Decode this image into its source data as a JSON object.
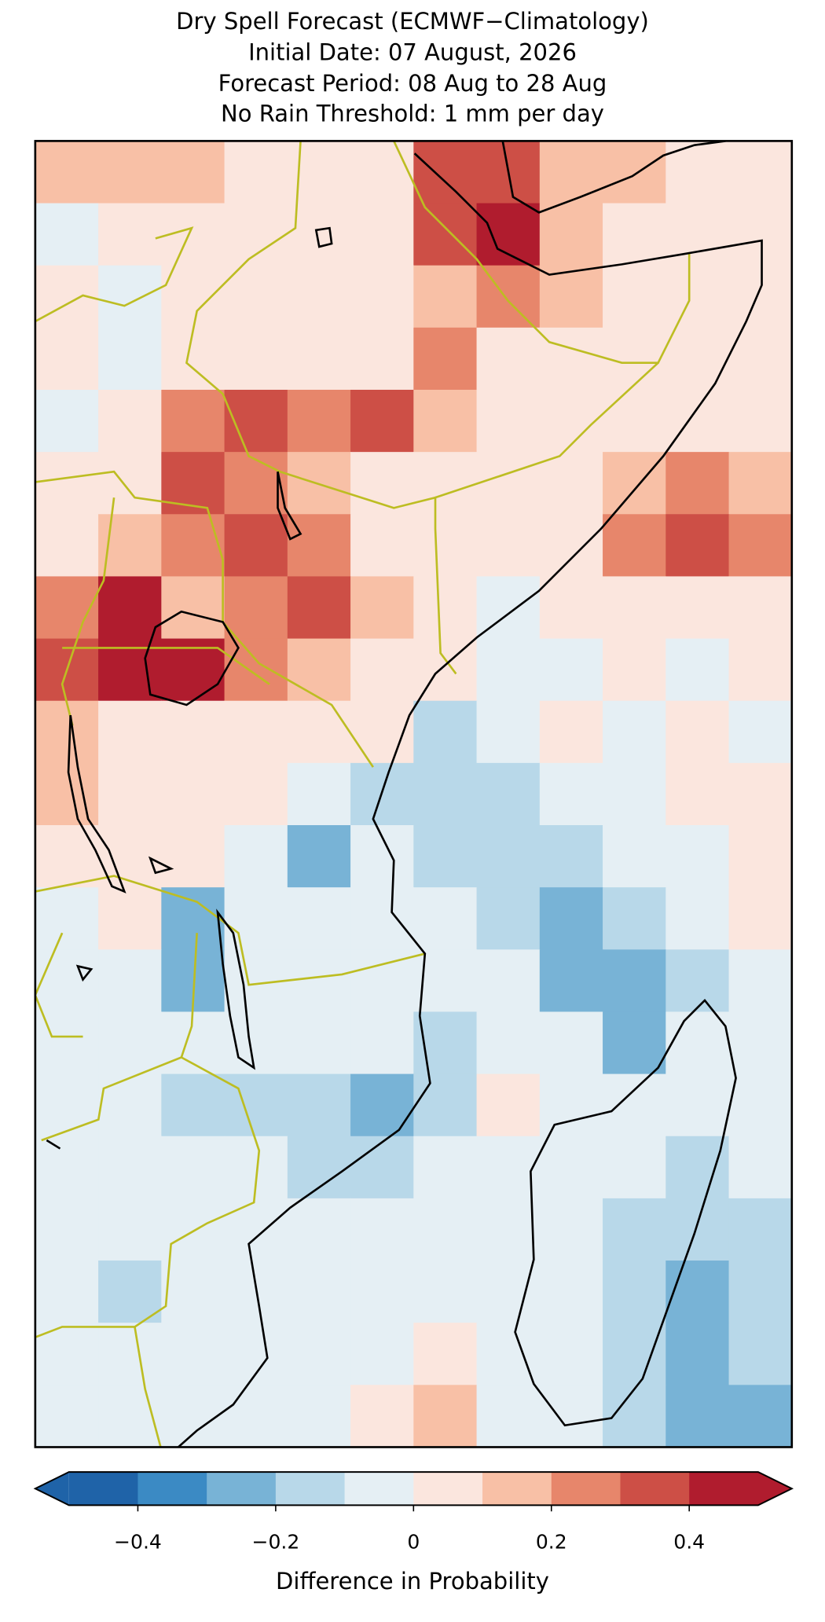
{
  "chart_data": {
    "type": "map",
    "title": [
      "Dry Spell Forecast (ECMWF−Climatology)",
      "Initial Date: 07 August, 2026",
      "Forecast Period: 08 Aug to 28 Aug",
      "No Rain Threshold: 1 mm per day"
    ],
    "grid": [
      [
        0.15,
        0.1,
        0.15,
        0.05,
        0.05,
        0.05,
        0.35,
        0.35,
        0.15,
        0.15,
        0.05,
        0.05
      ],
      [
        -0.05,
        0.05,
        0.05,
        0.05,
        0.05,
        0.05,
        0.35,
        0.45,
        0.15,
        0.05,
        0.05,
        0.05
      ],
      [
        0.05,
        -0.05,
        0.05,
        0.05,
        0.05,
        0.05,
        0.15,
        0.25,
        0.15,
        0.05,
        0.05,
        0.05
      ],
      [
        0.05,
        -0.05,
        0.05,
        0.05,
        0.05,
        0.05,
        0.25,
        0.05,
        0.05,
        0.05,
        0.05,
        0.05
      ],
      [
        -0.05,
        0.05,
        0.25,
        0.35,
        0.25,
        0.35,
        0.15,
        0.05,
        0.05,
        0.05,
        0.05,
        0.05
      ],
      [
        0.05,
        0.05,
        0.35,
        0.25,
        0.15,
        0.05,
        0.05,
        0.05,
        0.05,
        0.15,
        0.25,
        0.15
      ],
      [
        0.05,
        0.15,
        0.25,
        0.35,
        0.25,
        0.05,
        0.05,
        0.05,
        0.05,
        0.25,
        0.35,
        0.25
      ],
      [
        0.25,
        0.45,
        0.15,
        0.25,
        0.35,
        0.15,
        0.05,
        -0.05,
        0.05,
        0.05,
        0.05,
        0.05
      ],
      [
        0.35,
        0.45,
        0.45,
        0.25,
        0.15,
        0.05,
        0.05,
        -0.05,
        -0.05,
        0.05,
        -0.05,
        0.05
      ],
      [
        0.15,
        0.05,
        0.05,
        0.05,
        0.05,
        0.05,
        -0.15,
        -0.05,
        0.05,
        -0.05,
        0.05,
        -0.05
      ],
      [
        0.15,
        0.05,
        0.05,
        0.05,
        -0.05,
        -0.15,
        -0.15,
        -0.15,
        -0.05,
        -0.05,
        0.05,
        0.05
      ],
      [
        0.05,
        0.05,
        0.05,
        -0.05,
        -0.25,
        -0.05,
        -0.15,
        -0.15,
        -0.15,
        -0.05,
        -0.05,
        0.05
      ],
      [
        -0.05,
        0.05,
        -0.25,
        -0.05,
        -0.05,
        -0.05,
        -0.05,
        -0.15,
        -0.25,
        -0.15,
        -0.05,
        0.05
      ],
      [
        -0.05,
        -0.05,
        -0.25,
        -0.05,
        -0.05,
        -0.05,
        -0.05,
        -0.05,
        -0.25,
        -0.25,
        -0.15,
        -0.05
      ],
      [
        -0.05,
        -0.05,
        -0.05,
        -0.05,
        -0.05,
        -0.05,
        -0.15,
        -0.05,
        -0.05,
        -0.25,
        -0.05,
        -0.05
      ],
      [
        -0.05,
        -0.05,
        -0.15,
        -0.15,
        -0.15,
        -0.25,
        -0.15,
        0.05,
        -0.05,
        -0.05,
        -0.05,
        -0.05
      ],
      [
        -0.05,
        -0.05,
        -0.05,
        -0.05,
        -0.15,
        -0.15,
        -0.05,
        -0.05,
        -0.05,
        -0.05,
        -0.15,
        -0.05
      ],
      [
        -0.05,
        -0.05,
        -0.05,
        -0.05,
        -0.05,
        -0.05,
        -0.05,
        -0.05,
        -0.05,
        -0.15,
        -0.15,
        -0.15
      ],
      [
        -0.05,
        -0.15,
        -0.05,
        -0.05,
        -0.05,
        -0.05,
        -0.05,
        -0.05,
        -0.05,
        -0.15,
        -0.25,
        -0.15
      ],
      [
        -0.05,
        -0.05,
        -0.05,
        -0.05,
        -0.05,
        -0.05,
        0.05,
        -0.05,
        -0.05,
        -0.15,
        -0.25,
        -0.15
      ],
      [
        -0.05,
        -0.05,
        -0.05,
        -0.05,
        -0.05,
        0.05,
        0.15,
        -0.05,
        -0.05,
        -0.15,
        -0.25,
        -0.25
      ]
    ],
    "colorbar": {
      "label": "Difference in Probability",
      "clim": [
        -0.5,
        0.5
      ],
      "levels": [
        -0.5,
        -0.4,
        -0.3,
        -0.2,
        -0.1,
        0,
        0.1,
        0.2,
        0.3,
        0.4,
        0.5
      ],
      "colors": [
        "#1f63a8",
        "#3b8ac4",
        "#78b3d6",
        "#b8d8e9",
        "#e5eff4",
        "#fbe6de",
        "#f8c0a6",
        "#e7866b",
        "#cd4f46",
        "#b01c2e"
      ],
      "ticks": [
        {
          "value": -0.4,
          "label": "−0.4"
        },
        {
          "value": -0.2,
          "label": "−0.2"
        },
        0.0,
        0.2,
        0.4
      ]
    }
  }
}
